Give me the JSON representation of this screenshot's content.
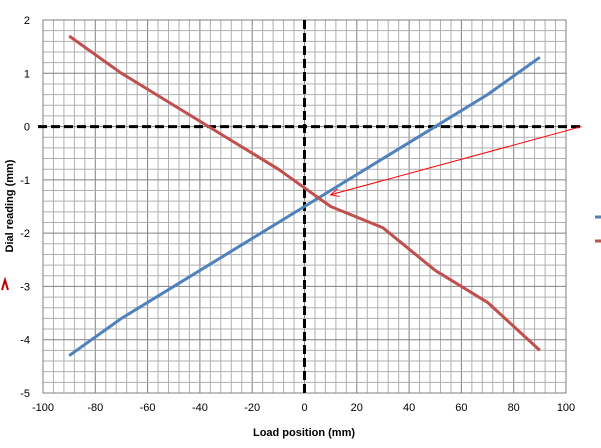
{
  "chart_data": {
    "type": "line",
    "title": "",
    "xlabel": "Load position (mm)",
    "ylabel": "Dial reading (mm)",
    "xlim": [
      -100,
      100
    ],
    "ylim": [
      -5,
      2
    ],
    "xticks": [
      -100,
      -80,
      -60,
      -40,
      -20,
      0,
      20,
      40,
      60,
      80,
      100
    ],
    "yticks": [
      -5,
      -4,
      -3,
      -2,
      -1,
      0,
      1,
      2
    ],
    "grid": true,
    "minor_grid": true,
    "legend_placement": "right (cut off)",
    "reference_lines": {
      "x": 0,
      "y": 0,
      "style": "dashed",
      "color": "#000000"
    },
    "series": [
      {
        "color": "#4f81bd",
        "x": [
          -90,
          -70,
          -50,
          -30,
          -10,
          10,
          30,
          50,
          70,
          90
        ],
        "y": [
          -4.3,
          -3.6,
          -3.0,
          -2.4,
          -1.8,
          -1.2,
          -0.6,
          0.0,
          0.6,
          1.3
        ]
      },
      {
        "color": "#c0504d",
        "x": [
          -90,
          -70,
          -50,
          -30,
          -10,
          10,
          30,
          50,
          70,
          90
        ],
        "y": [
          1.7,
          1.0,
          0.4,
          -0.2,
          -0.8,
          -1.5,
          -1.9,
          -2.7,
          -3.3,
          -4.2
        ]
      }
    ],
    "annotation_arrow": {
      "color": "#ff0000",
      "from": [
        106,
        0
      ],
      "to": [
        10,
        -1.28
      ]
    }
  }
}
